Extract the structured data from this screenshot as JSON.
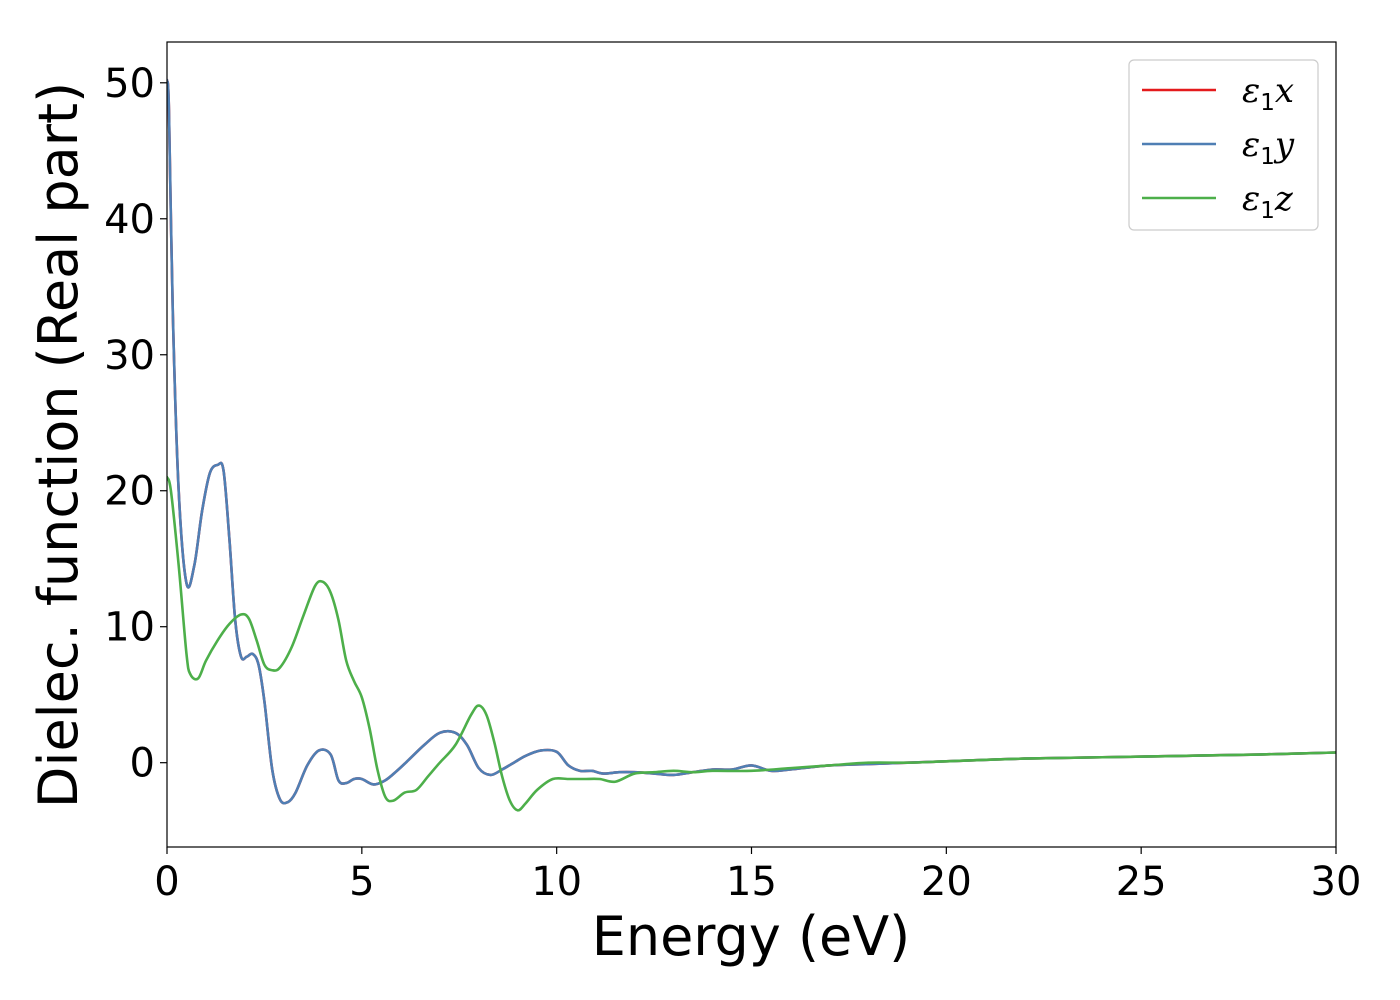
{
  "chart_data": {
    "type": "line",
    "xlabel": "Energy (eV)",
    "ylabel": "Dielec. function (Real part)",
    "xlim": [
      0,
      30
    ],
    "ylim": [
      -6.2,
      53
    ],
    "xticks": [
      0,
      5,
      10,
      15,
      20,
      25,
      30
    ],
    "yticks": [
      0,
      10,
      20,
      30,
      40,
      50
    ],
    "grid": false,
    "legend_position": "top-right",
    "series": [
      {
        "name": "ε1x",
        "symbol": "ε",
        "sub": "1",
        "axis": "x",
        "color": "#e41a1c",
        "x": [
          0,
          0.05,
          0.15,
          0.3,
          0.5,
          0.7,
          0.9,
          1.1,
          1.3,
          1.45,
          1.6,
          1.75,
          1.9,
          2.05,
          2.2,
          2.35,
          2.5,
          2.7,
          2.9,
          3.1,
          3.3,
          3.6,
          3.9,
          4.2,
          4.4,
          4.6,
          4.8,
          5.0,
          5.3,
          5.6,
          5.9,
          6.2,
          6.6,
          7.0,
          7.4,
          7.7,
          8.0,
          8.3,
          8.6,
          8.9,
          9.2,
          9.6,
          10.0,
          10.3,
          10.6,
          10.9,
          11.2,
          11.6,
          12.0,
          12.5,
          13.0,
          13.5,
          14.0,
          14.5,
          15.0,
          15.5,
          16.0,
          17.0,
          18.0,
          19.0,
          20.0,
          22.0,
          24.0,
          26.0,
          28.0,
          30.0
        ],
        "y": [
          50.2,
          48.0,
          33.0,
          20.0,
          13.2,
          14.5,
          18.5,
          21.3,
          21.9,
          21.5,
          16.5,
          10.5,
          7.8,
          7.8,
          8.0,
          7.2,
          4.5,
          -0.5,
          -2.7,
          -2.9,
          -2.2,
          -0.2,
          0.9,
          0.6,
          -1.3,
          -1.5,
          -1.2,
          -1.2,
          -1.6,
          -1.3,
          -0.6,
          0.2,
          1.3,
          2.2,
          2.2,
          1.3,
          -0.4,
          -0.9,
          -0.5,
          0.0,
          0.5,
          0.9,
          0.8,
          -0.2,
          -0.6,
          -0.6,
          -0.8,
          -0.7,
          -0.7,
          -0.8,
          -0.9,
          -0.7,
          -0.5,
          -0.5,
          -0.2,
          -0.6,
          -0.5,
          -0.2,
          -0.1,
          0.0,
          0.1,
          0.3,
          0.4,
          0.5,
          0.6,
          0.75
        ]
      },
      {
        "name": "ε1y",
        "symbol": "ε",
        "sub": "1",
        "axis": "y",
        "color": "#4f7fb4",
        "x": [
          0,
          0.05,
          0.15,
          0.3,
          0.5,
          0.7,
          0.9,
          1.1,
          1.3,
          1.45,
          1.6,
          1.75,
          1.9,
          2.05,
          2.2,
          2.35,
          2.5,
          2.7,
          2.9,
          3.1,
          3.3,
          3.6,
          3.9,
          4.2,
          4.4,
          4.6,
          4.8,
          5.0,
          5.3,
          5.6,
          5.9,
          6.2,
          6.6,
          7.0,
          7.4,
          7.7,
          8.0,
          8.3,
          8.6,
          8.9,
          9.2,
          9.6,
          10.0,
          10.3,
          10.6,
          10.9,
          11.2,
          11.6,
          12.0,
          12.5,
          13.0,
          13.5,
          14.0,
          14.5,
          15.0,
          15.5,
          16.0,
          17.0,
          18.0,
          19.0,
          20.0,
          22.0,
          24.0,
          26.0,
          28.0,
          30.0
        ],
        "y": [
          50.2,
          48.0,
          33.0,
          20.0,
          13.2,
          14.5,
          18.5,
          21.3,
          21.9,
          21.5,
          16.5,
          10.5,
          7.8,
          7.8,
          8.0,
          7.2,
          4.5,
          -0.5,
          -2.7,
          -2.9,
          -2.2,
          -0.2,
          0.9,
          0.6,
          -1.3,
          -1.5,
          -1.2,
          -1.2,
          -1.6,
          -1.3,
          -0.6,
          0.2,
          1.3,
          2.2,
          2.2,
          1.3,
          -0.4,
          -0.9,
          -0.5,
          0.0,
          0.5,
          0.9,
          0.8,
          -0.2,
          -0.6,
          -0.6,
          -0.8,
          -0.7,
          -0.7,
          -0.8,
          -0.9,
          -0.7,
          -0.5,
          -0.5,
          -0.2,
          -0.6,
          -0.5,
          -0.2,
          -0.1,
          0.0,
          0.1,
          0.3,
          0.4,
          0.5,
          0.6,
          0.75
        ]
      },
      {
        "name": "ε1z",
        "symbol": "ε",
        "sub": "1",
        "axis": "z",
        "color": "#4daf4a",
        "x": [
          0,
          0.1,
          0.3,
          0.5,
          0.6,
          0.8,
          1.0,
          1.3,
          1.6,
          1.9,
          2.1,
          2.3,
          2.5,
          2.7,
          2.9,
          3.2,
          3.5,
          3.8,
          4.0,
          4.2,
          4.4,
          4.6,
          4.8,
          5.0,
          5.2,
          5.4,
          5.6,
          5.8,
          6.1,
          6.4,
          6.7,
          7.0,
          7.4,
          7.8,
          8.0,
          8.2,
          8.4,
          8.6,
          8.8,
          9.0,
          9.2,
          9.5,
          9.9,
          10.3,
          10.7,
          11.1,
          11.5,
          12.0,
          12.5,
          13.0,
          13.5,
          14.0,
          15.0,
          16.0,
          17.0,
          18.0,
          19.0,
          20.0,
          22.0,
          24.0,
          26.0,
          28.0,
          30.0
        ],
        "y": [
          21.0,
          20.0,
          14.5,
          8.0,
          6.5,
          6.2,
          7.5,
          9.0,
          10.2,
          10.9,
          10.6,
          9.0,
          7.2,
          6.8,
          7.0,
          8.5,
          10.8,
          13.0,
          13.3,
          12.5,
          10.5,
          7.5,
          6.0,
          4.8,
          2.5,
          -0.5,
          -2.5,
          -2.8,
          -2.2,
          -2.0,
          -1.0,
          0.0,
          1.3,
          3.5,
          4.2,
          3.5,
          1.5,
          -1.0,
          -2.8,
          -3.5,
          -3.0,
          -2.0,
          -1.2,
          -1.2,
          -1.2,
          -1.2,
          -1.4,
          -0.8,
          -0.7,
          -0.6,
          -0.7,
          -0.6,
          -0.6,
          -0.4,
          -0.2,
          0.0,
          0.0,
          0.1,
          0.3,
          0.4,
          0.5,
          0.6,
          0.75
        ]
      }
    ]
  }
}
